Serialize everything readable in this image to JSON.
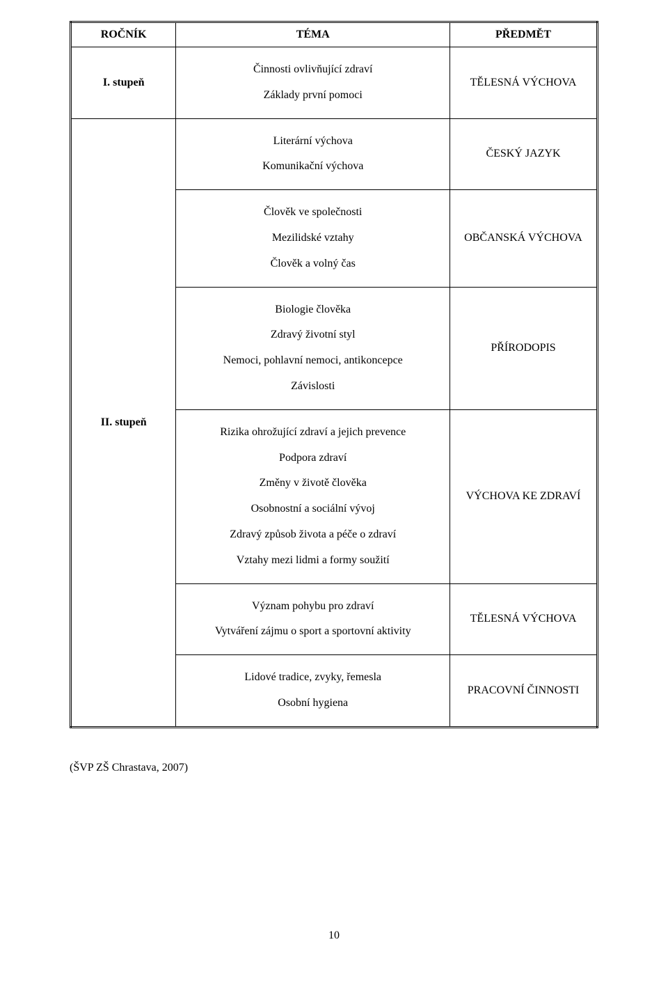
{
  "table": {
    "border_color": "#000000",
    "font_family": "Times New Roman",
    "header": {
      "c1": "ROČNÍK",
      "c2": "TÉMA",
      "c3": "PŘEDMĚT"
    },
    "r1": {
      "c1": "I. stupeň",
      "c2_line1": "Činnosti ovlivňující zdraví",
      "c2_line2": "Základy první pomoci",
      "c3": "TĚLESNÁ VÝCHOVA"
    },
    "r2": {
      "c1": "II. stupeň",
      "block1": {
        "c2_line1": "Literární výchova",
        "c2_line2": "Komunikační výchova",
        "c3": "ČESKÝ JAZYK"
      },
      "block2": {
        "c2_line1": "Člověk ve společnosti",
        "c2_line2": "Mezilidské vztahy",
        "c2_line3": "Člověk a volný čas",
        "c3": "OBČANSKÁ VÝCHOVA"
      },
      "block3": {
        "c2_line1": "Biologie člověka",
        "c2_line2": "Zdravý životní styl",
        "c2_line3": "Nemoci, pohlavní nemoci, antikoncepce",
        "c2_line4": "Závislosti",
        "c3": "PŘÍRODOPIS"
      },
      "block4": {
        "c2_line1": "Rizika ohrožující zdraví a jejich prevence",
        "c2_line2": "Podpora zdraví",
        "c2_line3": "Změny v životě člověka",
        "c2_line4": "Osobnostní a sociální vývoj",
        "c2_line5": "Zdravý způsob života a péče o zdraví",
        "c2_line6": "Vztahy mezi lidmi a formy soužití",
        "c3": "VÝCHOVA KE ZDRAVÍ"
      },
      "block5": {
        "c2_line1": "Význam pohybu pro zdraví",
        "c2_line2": "Vytváření zájmu o sport a sportovní aktivity",
        "c3": "TĚLESNÁ VÝCHOVA"
      },
      "block6": {
        "c2_line1": "Lidové tradice, zvyky, řemesla",
        "c2_line2": "Osobní hygiena",
        "c3": "PRACOVNÍ ČINNOSTI"
      }
    }
  },
  "citation": "(ŠVP ZŠ Chrastava, 2007)",
  "page_number": "10"
}
